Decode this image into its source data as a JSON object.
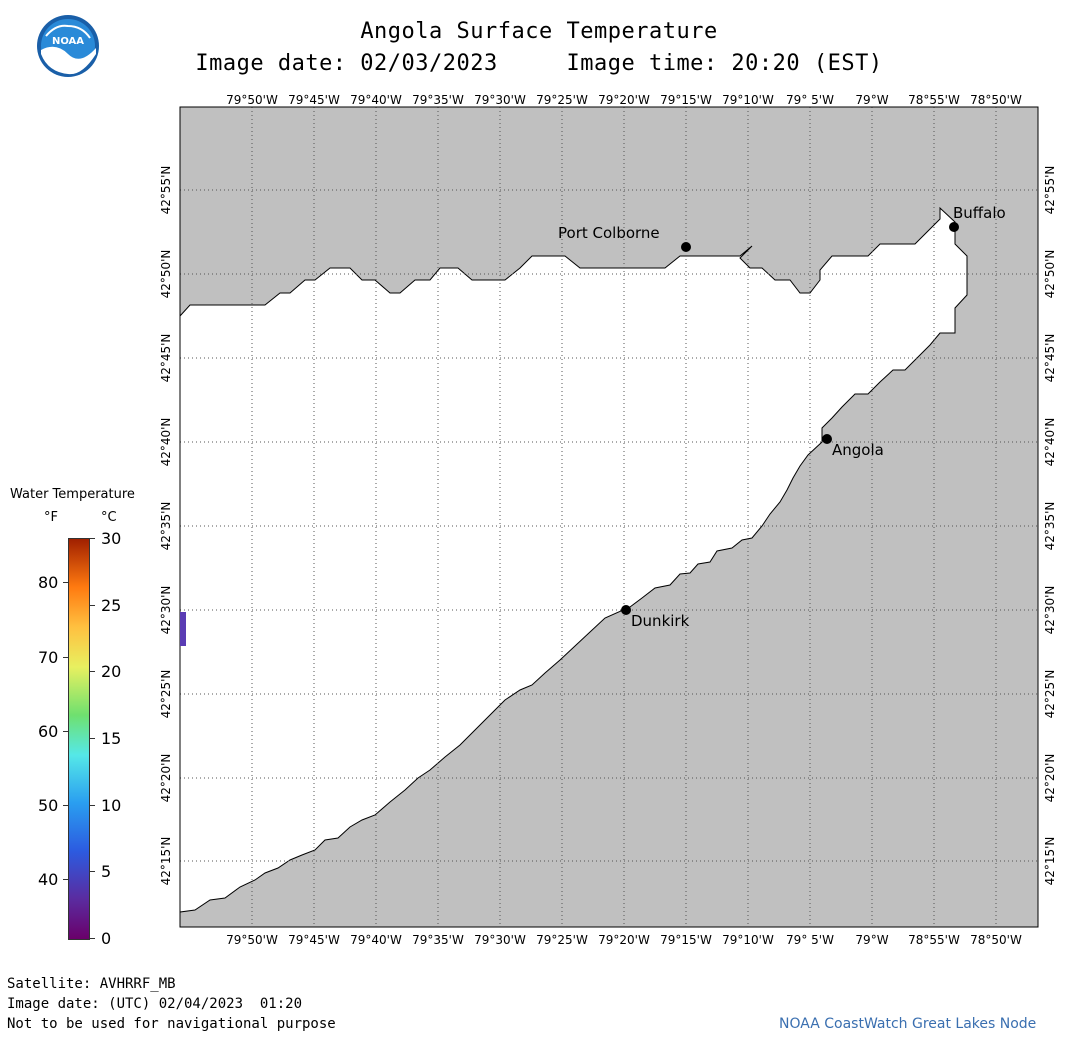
{
  "header": {
    "title": "Angola Surface Temperature",
    "subtitle": "Image date: 02/03/2023     Image time: 20:20 (EST)",
    "logo_text": "NOAA"
  },
  "map": {
    "lon_labels": [
      "79°50'W",
      "79°45'W",
      "79°40'W",
      "79°35'W",
      "79°30'W",
      "79°25'W",
      "79°20'W",
      "79°15'W",
      "79°10'W",
      "79° 5'W",
      "79°W",
      "78°55'W",
      "78°50'W"
    ],
    "lat_labels": [
      "42°55'N",
      "42°50'N",
      "42°45'N",
      "42°40'N",
      "42°35'N",
      "42°30'N",
      "42°25'N",
      "42°20'N",
      "42°15'N"
    ],
    "cities": [
      {
        "name": "Port Colborne"
      },
      {
        "name": "Buffalo"
      },
      {
        "name": "Angola"
      },
      {
        "name": "Dunkirk"
      }
    ],
    "land_color": "#c0c0c0",
    "water_color": "#ffffff",
    "data_pixel_color": "#5a3cb4"
  },
  "legend": {
    "title": "Water Temperature",
    "unit_f": "°F",
    "unit_c": "°C",
    "f_ticks": [
      "80",
      "70",
      "60",
      "50",
      "40"
    ],
    "c_ticks": [
      "30",
      "25",
      "20",
      "15",
      "10",
      "5",
      "0"
    ]
  },
  "footer": {
    "satellite": "Satellite: AVHRRF_MB",
    "utc_date": "Image date: (UTC) 02/04/2023  01:20",
    "disclaimer": "Not to be used for navigational purpose",
    "credit": "NOAA CoastWatch Great Lakes Node"
  }
}
